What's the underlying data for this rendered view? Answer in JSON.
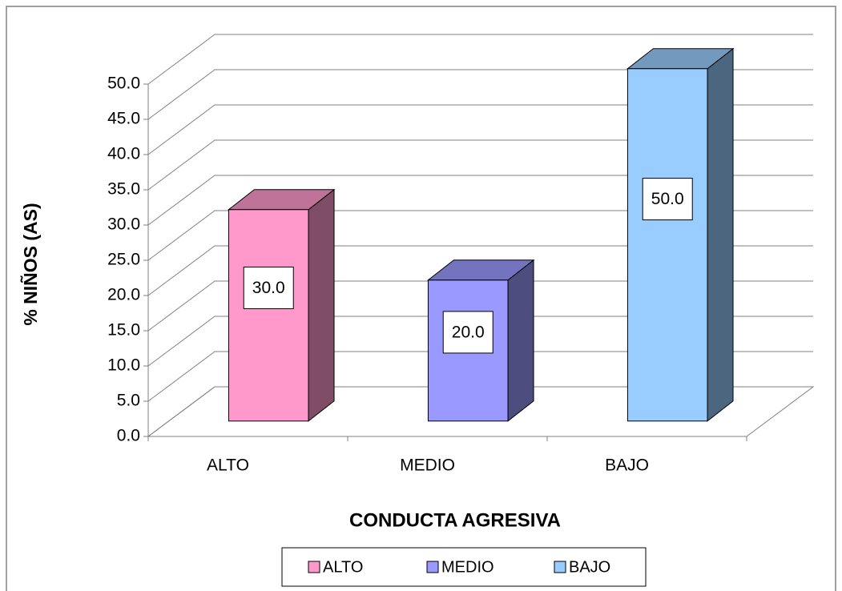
{
  "chart_data": {
    "type": "bar3d",
    "categories": [
      "ALTO",
      "MEDIO",
      "BAJO"
    ],
    "values": [
      30,
      20,
      50
    ],
    "value_labels": [
      "30.0",
      "20.0",
      "50.0"
    ],
    "colors": [
      "#ff99cc",
      "#9999ff",
      "#99ccff"
    ],
    "ylim": [
      0,
      50
    ],
    "yticks": [
      {
        "value": 0,
        "label": "0.0"
      },
      {
        "value": 5,
        "label": "5.0"
      },
      {
        "value": 10,
        "label": "10.0"
      },
      {
        "value": 15,
        "label": "15.0"
      },
      {
        "value": 20,
        "label": "20.0"
      },
      {
        "value": 25,
        "label": "25.0"
      },
      {
        "value": 30,
        "label": "30.0"
      },
      {
        "value": 35,
        "label": "35.0"
      },
      {
        "value": 40,
        "label": "40.0"
      },
      {
        "value": 45,
        "label": "45.0"
      },
      {
        "value": 50,
        "label": "50.0"
      }
    ],
    "y_label": "% NIÑOS (AS)",
    "x_label": "CONDUCTA AGRESIVA",
    "grid": true,
    "legend": "bottom"
  }
}
